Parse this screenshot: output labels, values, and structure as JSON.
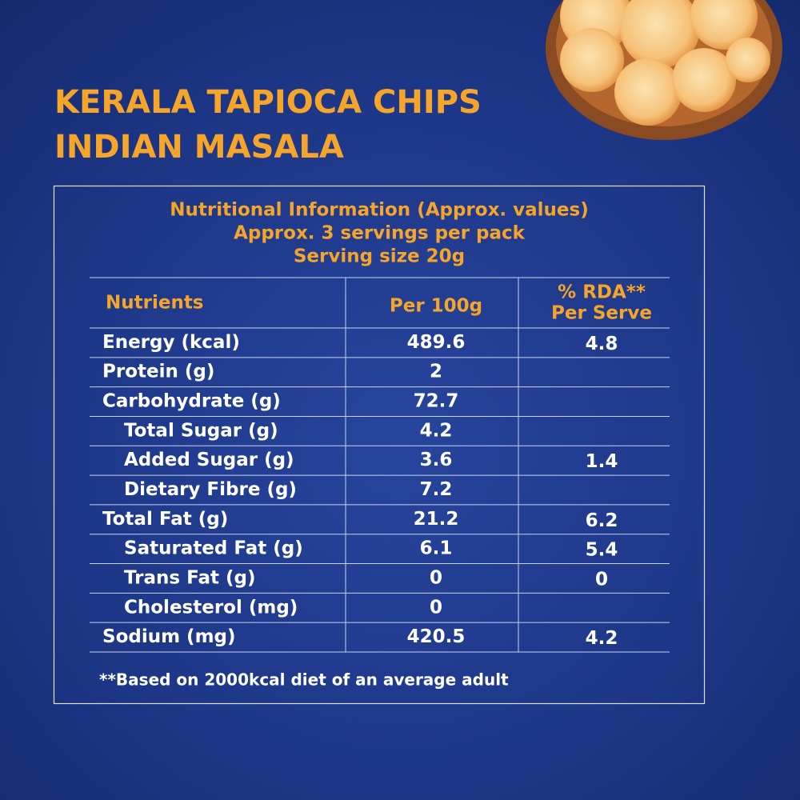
{
  "header": {
    "title_lines": [
      "KERALA TAPIOCA CHIPS",
      "INDIAN MASALA"
    ]
  },
  "panel": {
    "heading_lines": [
      "Nutritional Information (Approx. values)",
      "Approx. 3 servings per pack",
      "Serving size 20g"
    ],
    "table": {
      "columns": [
        "Nutrients",
        "Per 100g",
        [
          "% RDA**",
          "Per Serve"
        ]
      ],
      "rows": [
        {
          "name": "Energy (kcal)",
          "per_100g": "489.6",
          "rda": "4.8"
        },
        {
          "name": "Protein (g)",
          "per_100g": "2",
          "rda": null
        },
        {
          "name": "Carbohydrate (g)",
          "per_100g": "72.7",
          "rda": null,
          "sub_rows": [
            {
              "name": "Total Sugar (g)",
              "per_100g": "4.2",
              "rda": null
            },
            {
              "name": "Added Sugar (g)",
              "per_100g": "3.6",
              "rda": "1.4"
            },
            {
              "name": "Dietary Fibre (g)",
              "per_100g": "7.2",
              "rda": null
            }
          ]
        },
        {
          "name": "Total Fat (g)",
          "per_100g": "21.2",
          "rda": "6.2",
          "sub_rows": [
            {
              "name": "Saturated Fat (g)",
              "per_100g": "6.1",
              "rda": "5.4"
            },
            {
              "name": "Trans Fat (g)",
              "per_100g": "0",
              "rda": "0"
            },
            {
              "name": "Cholesterol (mg)",
              "per_100g": "0",
              "rda": null
            }
          ]
        },
        {
          "name": "Sodium (mg)",
          "per_100g": "420.5",
          "rda": "4.2"
        }
      ]
    },
    "footnote": "**Based on 2000kcal diet of an average adult"
  }
}
